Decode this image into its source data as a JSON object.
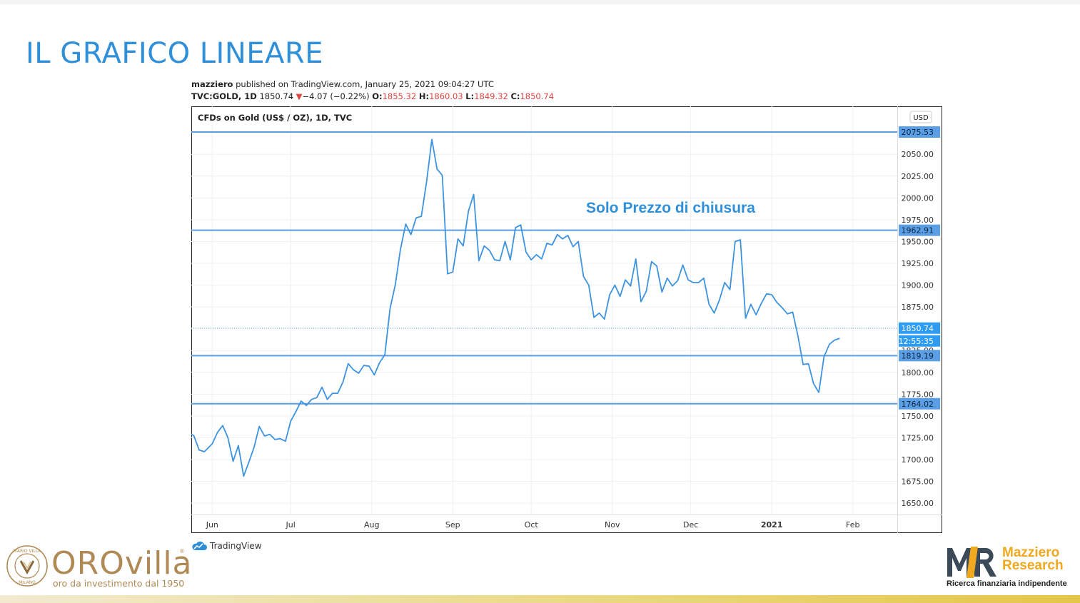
{
  "slide": {
    "title": "IL GRAFICO LINEARE"
  },
  "publish_info": {
    "user": "mazziero",
    "text": " published on TradingView.com, January 25, 2021 09:04:27 UTC"
  },
  "quote_line": {
    "symbol": "TVC:GOLD, 1D",
    "price": "1850.74",
    "change": "−4.07 (−0.22%)",
    "o_label": "O:",
    "o": "1855.32",
    "h_label": "H:",
    "h": "1860.03",
    "l_label": "L:",
    "l": "1849.32",
    "c_label": "C:",
    "c": "1850.74",
    "down_arrow": "▼"
  },
  "chart_data": {
    "type": "line",
    "title": "CFDs on Gold (US$ / OZ), 1D, TVC",
    "annotation": "Solo Prezzo di chiusura",
    "currency": "USD",
    "ylim": [
      1637,
      2105
    ],
    "y_ticks": [
      "1650.00",
      "1675.00",
      "1700.00",
      "1725.00",
      "1750.00",
      "1775.00",
      "1800.00",
      "1825.00",
      "1850.00",
      "1875.00",
      "1900.00",
      "1925.00",
      "1950.00",
      "1975.00",
      "2000.00",
      "2025.00",
      "2050.00",
      "2075.00"
    ],
    "x_ticks": [
      {
        "label": "Jun",
        "date": "2020-06-01"
      },
      {
        "label": "Jul",
        "date": "2020-07-01"
      },
      {
        "label": "Aug",
        "date": "2020-08-01"
      },
      {
        "label": "Sep",
        "date": "2020-09-01"
      },
      {
        "label": "Oct",
        "date": "2020-10-01"
      },
      {
        "label": "Nov",
        "date": "2020-11-01"
      },
      {
        "label": "Dec",
        "date": "2020-12-01"
      },
      {
        "label": "2021",
        "date": "2021-01-01",
        "bold": true
      },
      {
        "label": "Feb",
        "date": "2021-02-01"
      }
    ],
    "xlim": [
      "2020-05-24",
      "2021-02-18"
    ],
    "horizontal_levels": [
      "2075.53",
      "1962.91",
      "1819.19",
      "1764.02"
    ],
    "last_price": "1850.74",
    "countdown": "12:55:35",
    "series": [
      {
        "color": "#2f8fd8",
        "points": [
          [
            "2020-05-22",
            1734
          ],
          [
            "2020-05-25",
            1727
          ],
          [
            "2020-05-27",
            1711
          ],
          [
            "2020-05-29",
            1709
          ],
          [
            "2020-06-01",
            1718
          ],
          [
            "2020-06-03",
            1731
          ],
          [
            "2020-06-05",
            1739
          ],
          [
            "2020-06-07",
            1725
          ],
          [
            "2020-06-09",
            1698
          ],
          [
            "2020-06-11",
            1716
          ],
          [
            "2020-06-13",
            1681
          ],
          [
            "2020-06-15",
            1697
          ],
          [
            "2020-06-17",
            1714
          ],
          [
            "2020-06-19",
            1738
          ],
          [
            "2020-06-21",
            1727
          ],
          [
            "2020-06-23",
            1729
          ],
          [
            "2020-06-25",
            1723
          ],
          [
            "2020-06-27",
            1724
          ],
          [
            "2020-06-29",
            1721
          ],
          [
            "2020-07-01",
            1744
          ],
          [
            "2020-07-03",
            1755
          ],
          [
            "2020-07-05",
            1767
          ],
          [
            "2020-07-07",
            1762
          ],
          [
            "2020-07-09",
            1769
          ],
          [
            "2020-07-11",
            1771
          ],
          [
            "2020-07-13",
            1783
          ],
          [
            "2020-07-15",
            1769
          ],
          [
            "2020-07-17",
            1776
          ],
          [
            "2020-07-19",
            1776
          ],
          [
            "2020-07-21",
            1789
          ],
          [
            "2020-07-23",
            1810
          ],
          [
            "2020-07-25",
            1803
          ],
          [
            "2020-07-27",
            1799
          ],
          [
            "2020-07-29",
            1808
          ],
          [
            "2020-07-31",
            1807
          ],
          [
            "2020-08-02",
            1797
          ],
          [
            "2020-08-04",
            1811
          ],
          [
            "2020-08-06",
            1820
          ],
          [
            "2020-08-08",
            1873
          ],
          [
            "2020-08-10",
            1900
          ],
          [
            "2020-08-12",
            1941
          ],
          [
            "2020-08-14",
            1970
          ],
          [
            "2020-08-16",
            1958
          ],
          [
            "2020-08-18",
            1977
          ],
          [
            "2020-08-20",
            1979
          ],
          [
            "2020-08-22",
            2019
          ],
          [
            "2020-08-24",
            2067
          ],
          [
            "2020-08-26",
            2033
          ],
          [
            "2020-08-28",
            2026
          ],
          [
            "2020-08-30",
            1913
          ],
          [
            "2020-09-01",
            1915
          ],
          [
            "2020-09-03",
            1953
          ],
          [
            "2020-09-05",
            1945
          ],
          [
            "2020-09-07",
            1985
          ],
          [
            "2020-09-09",
            2004
          ],
          [
            "2020-09-11",
            1928
          ],
          [
            "2020-09-13",
            1945
          ],
          [
            "2020-09-15",
            1940
          ],
          [
            "2020-09-17",
            1929
          ],
          [
            "2020-09-19",
            1928
          ],
          [
            "2020-09-21",
            1950
          ],
          [
            "2020-09-23",
            1929
          ],
          [
            "2020-09-25",
            1966
          ],
          [
            "2020-09-27",
            1969
          ],
          [
            "2020-09-29",
            1938
          ],
          [
            "2020-10-01",
            1929
          ],
          [
            "2020-10-03",
            1935
          ],
          [
            "2020-10-05",
            1930
          ],
          [
            "2020-10-07",
            1948
          ],
          [
            "2020-10-09",
            1946
          ],
          [
            "2020-10-11",
            1958
          ],
          [
            "2020-10-13",
            1953
          ],
          [
            "2020-10-15",
            1957
          ],
          [
            "2020-10-17",
            1944
          ],
          [
            "2020-10-19",
            1950
          ],
          [
            "2020-10-21",
            1910
          ],
          [
            "2020-10-23",
            1900
          ],
          [
            "2020-10-25",
            1863
          ],
          [
            "2020-10-27",
            1868
          ],
          [
            "2020-10-29",
            1861
          ],
          [
            "2020-10-31",
            1889
          ],
          [
            "2020-11-02",
            1900
          ],
          [
            "2020-11-04",
            1887
          ],
          [
            "2020-11-06",
            1906
          ],
          [
            "2020-11-08",
            1899
          ],
          [
            "2020-11-10",
            1930
          ],
          [
            "2020-11-12",
            1881
          ],
          [
            "2020-11-14",
            1893
          ],
          [
            "2020-11-16",
            1927
          ],
          [
            "2020-11-18",
            1922
          ],
          [
            "2020-11-20",
            1892
          ],
          [
            "2020-11-22",
            1908
          ],
          [
            "2020-11-24",
            1899
          ],
          [
            "2020-11-26",
            1905
          ],
          [
            "2020-11-28",
            1923
          ],
          [
            "2020-11-30",
            1906
          ],
          [
            "2020-12-02",
            1903
          ],
          [
            "2020-12-04",
            1903
          ],
          [
            "2020-12-06",
            1908
          ],
          [
            "2020-12-08",
            1878
          ],
          [
            "2020-12-10",
            1868
          ],
          [
            "2020-12-12",
            1883
          ],
          [
            "2020-12-14",
            1903
          ],
          [
            "2020-12-16",
            1895
          ],
          [
            "2020-12-18",
            1950
          ],
          [
            "2020-12-20",
            1952
          ],
          [
            "2020-12-22",
            1862
          ],
          [
            "2020-12-24",
            1878
          ],
          [
            "2020-12-26",
            1866
          ],
          [
            "2020-12-28",
            1879
          ],
          [
            "2020-12-30",
            1890
          ],
          [
            "2021-01-01",
            1889
          ],
          [
            "2021-01-03",
            1880
          ],
          [
            "2021-01-05",
            1874
          ],
          [
            "2021-01-07",
            1867
          ],
          [
            "2021-01-09",
            1869
          ],
          [
            "2021-01-11",
            1842
          ],
          [
            "2021-01-13",
            1809
          ],
          [
            "2021-01-15",
            1810
          ],
          [
            "2021-01-17",
            1787
          ],
          [
            "2021-01-19",
            1777
          ],
          [
            "2021-01-21",
            1818
          ],
          [
            "2021-01-23",
            1832
          ],
          [
            "2021-01-25",
            1837
          ],
          [
            "2021-01-27",
            1839
          ]
        ]
      }
    ]
  },
  "footer": {
    "tradingview": "TradingView",
    "orovilla_name": "OROvilla",
    "orovilla_sub": "oro da investimento dal 1950",
    "orovilla_reg": "®",
    "mazziero_line1": "Mazziero",
    "mazziero_line2": "Research",
    "mazziero_sub": "Ricerca finanziaria indipendente",
    "mr_logo": "MR"
  },
  "colors": {
    "accent": "#2f8fd8",
    "line": "#3d93e0",
    "down": "#e0453f",
    "gold": "#b08a55",
    "orange": "#f0a81e"
  }
}
